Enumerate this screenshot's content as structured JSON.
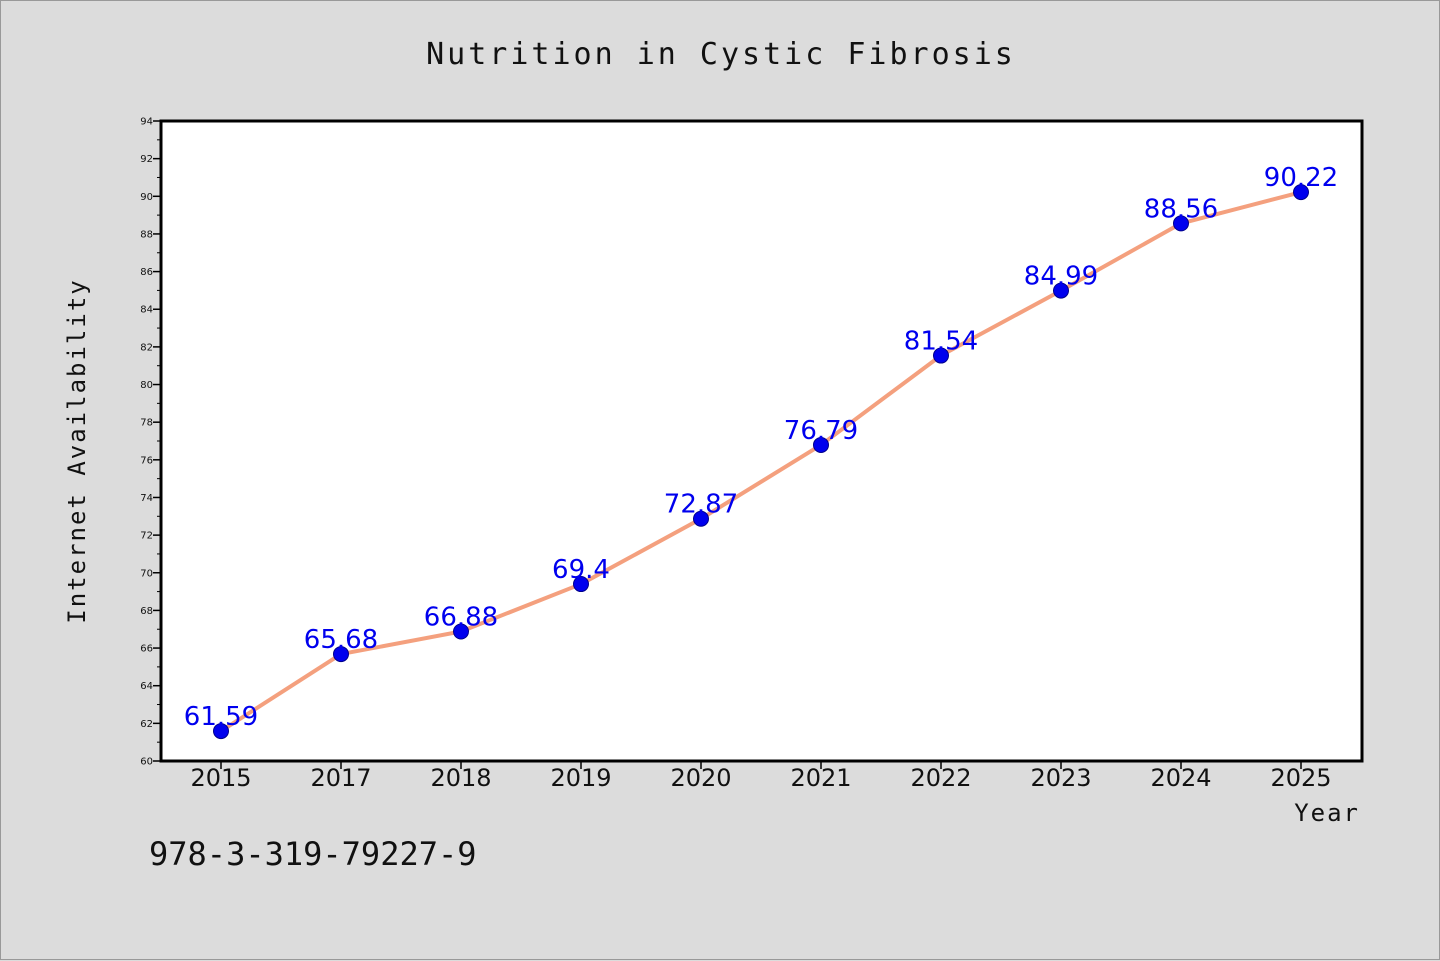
{
  "chart_data": {
    "type": "line",
    "title": "Nutrition in Cystic Fibrosis",
    "xlabel": "Year",
    "ylabel": "Internet Availability",
    "categories": [
      "2015",
      "2017",
      "2018",
      "2019",
      "2020",
      "2021",
      "2022",
      "2023",
      "2024",
      "2025"
    ],
    "series": [
      {
        "values": [
          61.59,
          65.68,
          66.88,
          69.4,
          72.87,
          76.79,
          81.54,
          84.99,
          88.56,
          90.22
        ]
      }
    ],
    "data_labels": [
      "61.59",
      "65.68",
      "66.88",
      "69.4",
      "72.87",
      "76.79",
      "81.54",
      "84.99",
      "88.56",
      "90.22"
    ],
    "ylim": [
      60,
      94
    ],
    "yticks": [
      "60",
      "62",
      "64",
      "66",
      "68",
      "70",
      "72",
      "74",
      "76",
      "78",
      "80",
      "82",
      "84",
      "86",
      "88",
      "90",
      "92",
      "94"
    ],
    "grid": false,
    "line_color": "#f4a07e",
    "marker_color": "#0000ee",
    "label_color": "#0000ee"
  },
  "footer": {
    "isbn": "978-3-319-79227-9"
  }
}
